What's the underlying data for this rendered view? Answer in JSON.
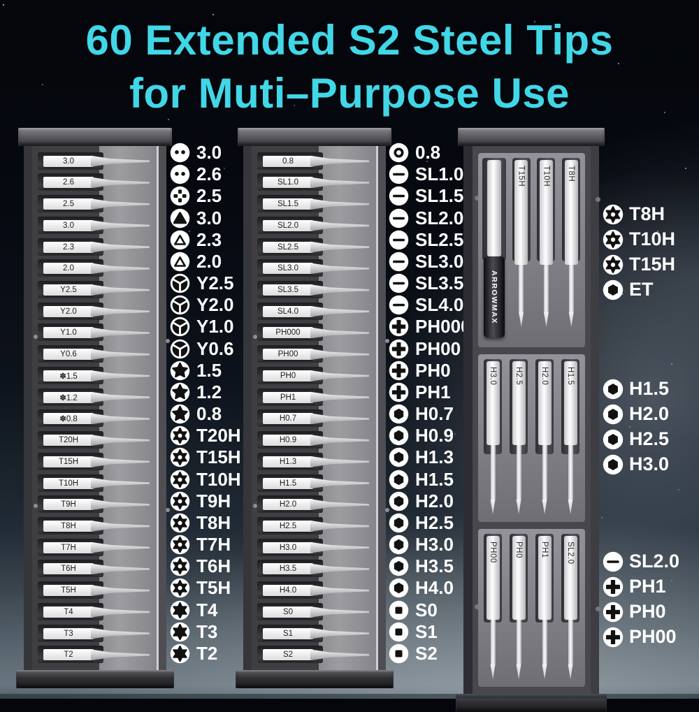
{
  "title": {
    "line1": "60 Extended S2 Steel Tips",
    "line2": "for Muti–Purpose Use"
  },
  "colors": {
    "title": "#41d7e7",
    "icon_bg": "#ffffff",
    "icon_glyph": "#111111"
  },
  "rack1": {
    "rows": [
      {
        "tray": "3.0",
        "icon": "u",
        "label": "3.0"
      },
      {
        "tray": "2.6",
        "icon": "u",
        "label": "2.6"
      },
      {
        "tray": "2.5",
        "icon": "cross4",
        "label": "2.5"
      },
      {
        "tray": "3.0",
        "icon": "tri-solid",
        "label": "3.0"
      },
      {
        "tray": "2.3",
        "icon": "tri-outline",
        "label": "2.3"
      },
      {
        "tray": "2.0",
        "icon": "tri-outline",
        "label": "2.0"
      },
      {
        "tray": "Y2.5",
        "icon": "y",
        "label": "Y2.5"
      },
      {
        "tray": "Y2.0",
        "icon": "y",
        "label": "Y2.0"
      },
      {
        "tray": "Y1.0",
        "icon": "y",
        "label": "Y1.0"
      },
      {
        "tray": "Y0.6",
        "icon": "y",
        "label": "Y0.6"
      },
      {
        "tray": "✽1.5",
        "icon": "pentalobe",
        "label": "1.5"
      },
      {
        "tray": "✽1.2",
        "icon": "pentalobe",
        "label": "1.2"
      },
      {
        "tray": "✽0.8",
        "icon": "pentalobe",
        "label": "0.8"
      },
      {
        "tray": "T20H",
        "icon": "torx-sec",
        "label": "T20H"
      },
      {
        "tray": "T15H",
        "icon": "torx-sec",
        "label": "T15H"
      },
      {
        "tray": "T10H",
        "icon": "torx-sec",
        "label": "T10H"
      },
      {
        "tray": "T9H",
        "icon": "torx-sec",
        "label": "T9H"
      },
      {
        "tray": "T8H",
        "icon": "torx-sec",
        "label": "T8H"
      },
      {
        "tray": "T7H",
        "icon": "torx-sec",
        "label": "T7H"
      },
      {
        "tray": "T6H",
        "icon": "torx-sec",
        "label": "T6H"
      },
      {
        "tray": "T5H",
        "icon": "torx-sec",
        "label": "T5H"
      },
      {
        "tray": "T4",
        "icon": "torx",
        "label": "T4"
      },
      {
        "tray": "T3",
        "icon": "torx",
        "label": "T3"
      },
      {
        "tray": "T2",
        "icon": "torx",
        "label": "T2"
      }
    ]
  },
  "rack2": {
    "rows": [
      {
        "tray": "0.8",
        "icon": "ring",
        "label": "0.8"
      },
      {
        "tray": "SL1.0",
        "icon": "sl",
        "label": "SL1.0"
      },
      {
        "tray": "SL1.5",
        "icon": "sl",
        "label": "SL1.5"
      },
      {
        "tray": "SL2.0",
        "icon": "sl",
        "label": "SL2.0"
      },
      {
        "tray": "SL2.5",
        "icon": "sl",
        "label": "SL2.5"
      },
      {
        "tray": "SL3.0",
        "icon": "sl",
        "label": "SL3.0"
      },
      {
        "tray": "SL3.5",
        "icon": "sl",
        "label": "SL3.5"
      },
      {
        "tray": "SL4.0",
        "icon": "sl",
        "label": "SL4.0"
      },
      {
        "tray": "PH000",
        "icon": "ph",
        "label": "PH000"
      },
      {
        "tray": "PH00",
        "icon": "ph",
        "label": "PH00"
      },
      {
        "tray": "PH0",
        "icon": "ph",
        "label": "PH0"
      },
      {
        "tray": "PH1",
        "icon": "ph",
        "label": "PH1"
      },
      {
        "tray": "H0.7",
        "icon": "hex",
        "label": "H0.7"
      },
      {
        "tray": "H0.9",
        "icon": "hex",
        "label": "H0.9"
      },
      {
        "tray": "H1.3",
        "icon": "hex",
        "label": "H1.3"
      },
      {
        "tray": "H1.5",
        "icon": "hex",
        "label": "H1.5"
      },
      {
        "tray": "H2.0",
        "icon": "hex",
        "label": "H2.0"
      },
      {
        "tray": "H2.5",
        "icon": "hex",
        "label": "H2.5"
      },
      {
        "tray": "H3.0",
        "icon": "hex",
        "label": "H3.0"
      },
      {
        "tray": "H3.5",
        "icon": "hex",
        "label": "H3.5"
      },
      {
        "tray": "H4.0",
        "icon": "hex",
        "label": "H4.0"
      },
      {
        "tray": "S0",
        "icon": "sq",
        "label": "S0"
      },
      {
        "tray": "S1",
        "icon": "sq",
        "label": "S1"
      },
      {
        "tray": "S2",
        "icon": "sq",
        "label": "S2"
      }
    ]
  },
  "case": {
    "brand": "ARROWMAX",
    "sections": [
      {
        "driver": true,
        "bits": [
          "T15H",
          "T10H",
          "T8H"
        ]
      },
      {
        "driver": false,
        "bits": [
          "H3.0",
          "H2.5",
          "H2.0",
          "H1.5"
        ]
      },
      {
        "driver": false,
        "bits": [
          "PH00",
          "PH0",
          "PH1",
          "SL2.0"
        ]
      }
    ],
    "legend_groups": [
      [
        {
          "icon": "torx-sec",
          "label": "T8H"
        },
        {
          "icon": "torx-sec",
          "label": "T10H"
        },
        {
          "icon": "torx-sec",
          "label": "T15H"
        },
        {
          "icon": "hex",
          "label": "ET"
        }
      ],
      [
        {
          "icon": "hex",
          "label": "H1.5"
        },
        {
          "icon": "hex",
          "label": "H2.0"
        },
        {
          "icon": "hex",
          "label": "H2.5"
        },
        {
          "icon": "hex",
          "label": "H3.0"
        }
      ],
      [
        {
          "icon": "sl",
          "label": "SL2.0"
        },
        {
          "icon": "ph",
          "label": "PH1"
        },
        {
          "icon": "ph",
          "label": "PH0"
        },
        {
          "icon": "ph",
          "label": "PH00"
        }
      ]
    ]
  }
}
